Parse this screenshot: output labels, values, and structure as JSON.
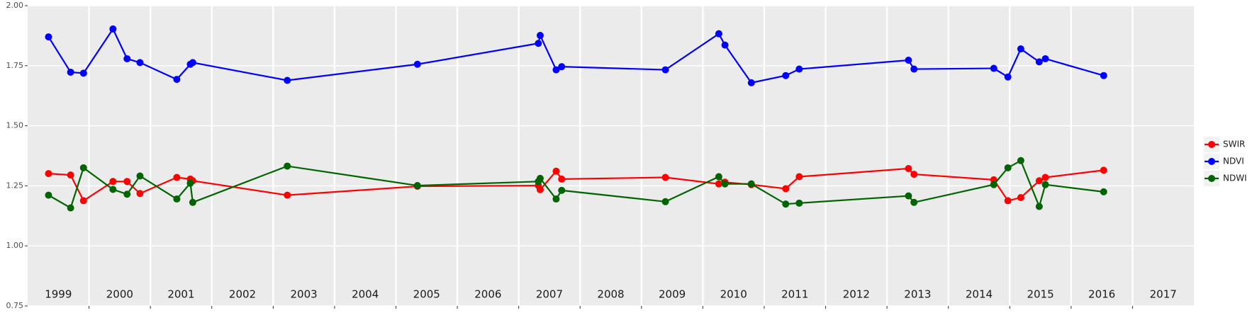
{
  "chart_data": {
    "type": "line",
    "x": [
      1999.34,
      1999.7,
      1999.91,
      2000.39,
      2000.62,
      2000.83,
      2001.43,
      2001.65,
      2001.69,
      2003.23,
      2005.35,
      2007.32,
      2007.35,
      2007.61,
      2007.7,
      2009.39,
      2010.26,
      2010.36,
      2010.79,
      2011.35,
      2011.57,
      2013.35,
      2013.44,
      2014.74,
      2014.97,
      2015.18,
      2015.48,
      2015.58,
      2016.53
    ],
    "series": [
      {
        "name": "SWIR",
        "color": "#ff0000",
        "values": [
          1.301,
          1.295,
          1.188,
          1.268,
          1.268,
          1.218,
          1.285,
          1.278,
          1.271,
          1.211,
          1.248,
          1.251,
          1.234,
          1.311,
          1.278,
          1.285,
          1.258,
          1.265,
          1.255,
          1.238,
          1.288,
          1.322,
          1.298,
          1.275,
          1.188,
          1.201,
          1.271,
          1.285,
          1.315
        ]
      },
      {
        "name": "NDVI",
        "color": "#0000ff",
        "values": [
          1.87,
          1.723,
          1.719,
          1.903,
          1.779,
          1.763,
          1.693,
          1.756,
          1.763,
          1.689,
          1.756,
          1.843,
          1.876,
          1.733,
          1.746,
          1.733,
          1.883,
          1.836,
          1.679,
          1.709,
          1.736,
          1.773,
          1.736,
          1.739,
          1.703,
          1.82,
          1.766,
          1.779,
          1.709
        ]
      },
      {
        "name": "NDWI",
        "color": "#006400",
        "values": [
          1.211,
          1.158,
          1.325,
          1.235,
          1.215,
          1.291,
          1.195,
          1.261,
          1.181,
          1.332,
          1.251,
          1.268,
          1.281,
          1.195,
          1.231,
          1.184,
          1.288,
          1.258,
          1.258,
          1.174,
          1.178,
          1.208,
          1.181,
          1.255,
          1.325,
          1.355,
          1.164,
          1.255,
          1.225
        ]
      }
    ],
    "xlim": [
      1999,
      2018
    ],
    "xticks": [
      {
        "value": 1999.5,
        "label": "1999"
      },
      {
        "value": 2000.5,
        "label": "2000"
      },
      {
        "value": 2001.5,
        "label": "2001"
      },
      {
        "value": 2002.5,
        "label": "2002"
      },
      {
        "value": 2003.5,
        "label": "2003"
      },
      {
        "value": 2004.5,
        "label": "2004"
      },
      {
        "value": 2005.5,
        "label": "2005"
      },
      {
        "value": 2006.5,
        "label": "2006"
      },
      {
        "value": 2007.5,
        "label": "2007"
      },
      {
        "value": 2008.5,
        "label": "2008"
      },
      {
        "value": 2009.5,
        "label": "2009"
      },
      {
        "value": 2010.5,
        "label": "2010"
      },
      {
        "value": 2011.5,
        "label": "2011"
      },
      {
        "value": 2012.5,
        "label": "2012"
      },
      {
        "value": 2013.5,
        "label": "2013"
      },
      {
        "value": 2014.5,
        "label": "2014"
      },
      {
        "value": 2015.5,
        "label": "2015"
      },
      {
        "value": 2016.5,
        "label": "2016"
      },
      {
        "value": 2017.5,
        "label": "2017"
      }
    ],
    "xgrid": [
      2000,
      2001,
      2002,
      2003,
      2004,
      2005,
      2006,
      2007,
      2008,
      2009,
      2010,
      2011,
      2012,
      2013,
      2014,
      2015,
      2016,
      2017
    ],
    "ylim": [
      0.75,
      2.0
    ],
    "yticks": [
      0.75,
      {
        "value": 1.0,
        "label": "1.00"
      },
      1.25,
      {
        "value": 1.5,
        "label": "1.50"
      },
      1.75,
      {
        "value": 2.0,
        "label": "2.00"
      }
    ],
    "grid": true,
    "legend": "right"
  }
}
